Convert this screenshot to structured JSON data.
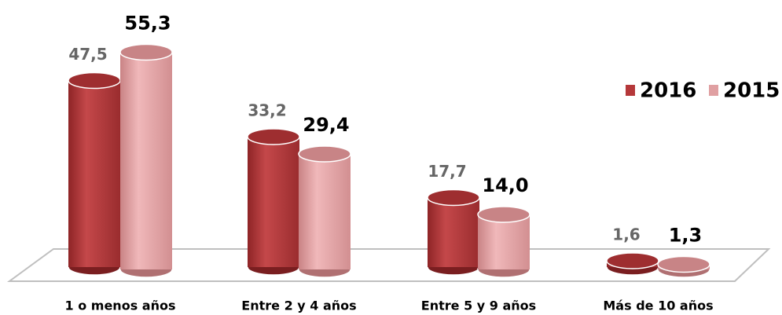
{
  "chart_data": {
    "type": "bar3d",
    "categories": [
      "1 o menos años",
      "Entre 2 y 4 años",
      "Entre 5 y 9 años",
      "Más de 10 años"
    ],
    "series": [
      {
        "name": "2016",
        "color": "#b5383a",
        "values": [
          47.5,
          33.2,
          17.7,
          1.6
        ],
        "value_labels": [
          "47,5",
          "33,2",
          "17,7",
          "1,6"
        ]
      },
      {
        "name": "2015",
        "color": "#e0a0a2",
        "values": [
          55.3,
          29.4,
          14.0,
          1.3
        ],
        "value_labels": [
          "55,3",
          "29,4",
          "14,0",
          "1,3"
        ]
      }
    ],
    "legend": "right"
  }
}
